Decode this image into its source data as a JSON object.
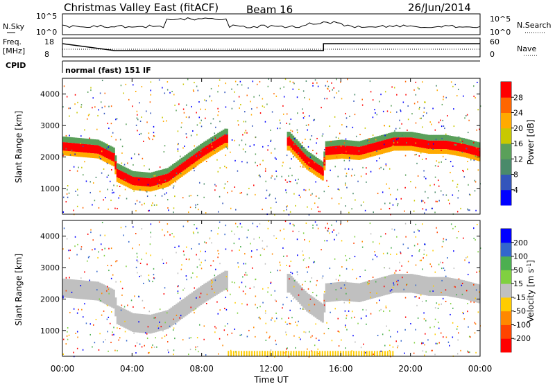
{
  "header": {
    "station": "Christmas Valley East (fitACF)",
    "beam": "Beam 16",
    "date": "26/Jun/2014"
  },
  "panels": {
    "nsky_label": "N.Sky",
    "nsearch_label": "N.Search",
    "freq_label_1": "Freq.",
    "freq_label_2": "[MHz]",
    "nave_label": "Nave",
    "cpid_label": "CPID",
    "cpid_value": "normal (fast) 151 IF",
    "noise_ticks_left": [
      "10^5",
      "10^0"
    ],
    "noise_ticks_right": [
      "10^5",
      "10^0"
    ],
    "freq_ticks_left": [
      "18",
      "8"
    ],
    "freq_ticks_right": [
      "60",
      "0"
    ]
  },
  "colors": {
    "power_scale": [
      "#0000ff",
      "#3355bb",
      "#4a8a6a",
      "#5aa05a",
      "#c8c800",
      "#ffaa00",
      "#ff6600",
      "#ff0000"
    ],
    "velocity_scale": [
      "#0000ff",
      "#3366cc",
      "#4caf50",
      "#80d040",
      "#c0c0c0",
      "#ffcc00",
      "#ff8800",
      "#ff4400",
      "#ff0000"
    ],
    "echo_gray": "#c0c0c0"
  },
  "chart_data": [
    {
      "type": "heatmap",
      "title": "",
      "xlabel": "",
      "ylabel": "Slant Range [km]",
      "x_range_hours": [
        0,
        24
      ],
      "y_range_km": [
        180,
        4500
      ],
      "y_ticks": [
        1000,
        2000,
        3000,
        4000
      ],
      "colorbar_label": "Power [dB]",
      "colorbar_ticks": [
        "4",
        "8",
        "12",
        "16",
        "20",
        "24",
        "28"
      ],
      "echo_band_range_km": {
        "hours": [
          0,
          1,
          2,
          2.9,
          3.1,
          4,
          5,
          6,
          7,
          8,
          9,
          9.3,
          13,
          14,
          14.9,
          15.1,
          16,
          17,
          18,
          19,
          20,
          21,
          22,
          23,
          24
        ],
        "center": [
          2350,
          2300,
          2250,
          2000,
          1500,
          1250,
          1200,
          1350,
          1750,
          2150,
          2500,
          2600,
          2500,
          1900,
          1550,
          2200,
          2250,
          2200,
          2350,
          2500,
          2500,
          2400,
          2400,
          2300,
          2150
        ]
      }
    },
    {
      "type": "heatmap",
      "title": "",
      "xlabel": "Time UT",
      "ylabel": "Slant Range [km]",
      "x_range_hours": [
        0,
        24
      ],
      "x_ticks": [
        "00:00",
        "04:00",
        "08:00",
        "12:00",
        "16:00",
        "20:00",
        "00:00"
      ],
      "y_range_km": [
        180,
        4500
      ],
      "y_ticks": [
        1000,
        2000,
        3000,
        4000
      ],
      "colorbar_label": "Velocity [m s^-1]",
      "colorbar_ticks": [
        "200",
        "100",
        "50",
        "15",
        "-15",
        "-50",
        "-100",
        "-200"
      ]
    }
  ]
}
